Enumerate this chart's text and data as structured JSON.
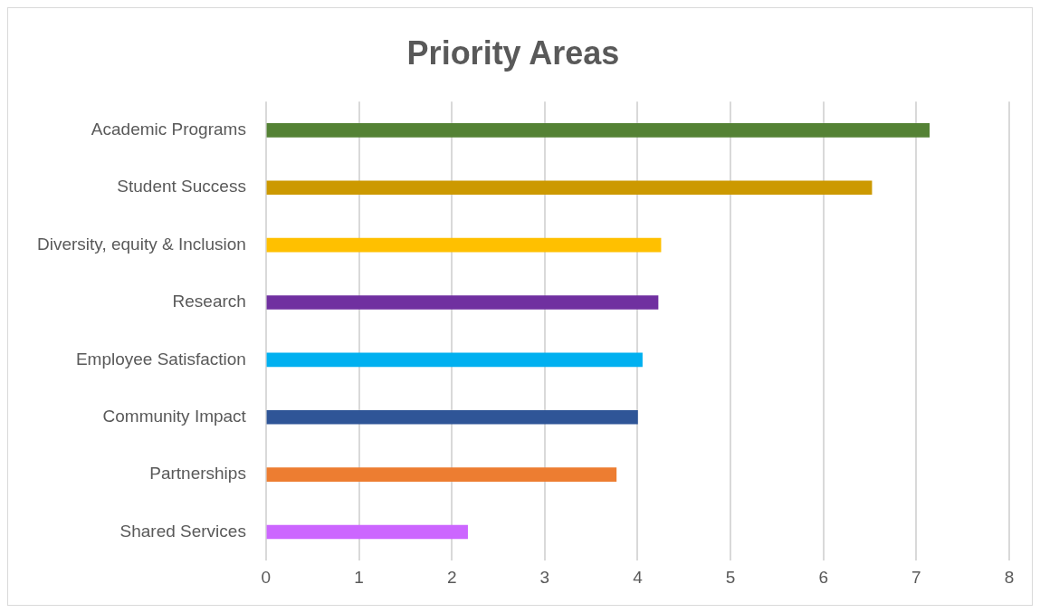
{
  "chart_data": {
    "type": "bar",
    "orientation": "horizontal",
    "title": "Priority Areas",
    "categories": [
      "Academic Programs",
      "Student Success",
      "Diversity, equity & Inclusion",
      "Research",
      "Employee Satisfaction",
      "Community Impact",
      "Partnerships",
      "Shared Services"
    ],
    "values": [
      7.14,
      6.52,
      4.25,
      4.22,
      4.05,
      4.0,
      3.77,
      2.17
    ],
    "colors": [
      "#548235",
      "#cc9900",
      "#ffc000",
      "#7030a0",
      "#00b0f0",
      "#2f5597",
      "#ed7d31",
      "#cc66ff"
    ],
    "xlim": [
      0,
      8
    ],
    "xticks": [
      0,
      1,
      2,
      3,
      4,
      5,
      6,
      7,
      8
    ],
    "grid": "x"
  }
}
